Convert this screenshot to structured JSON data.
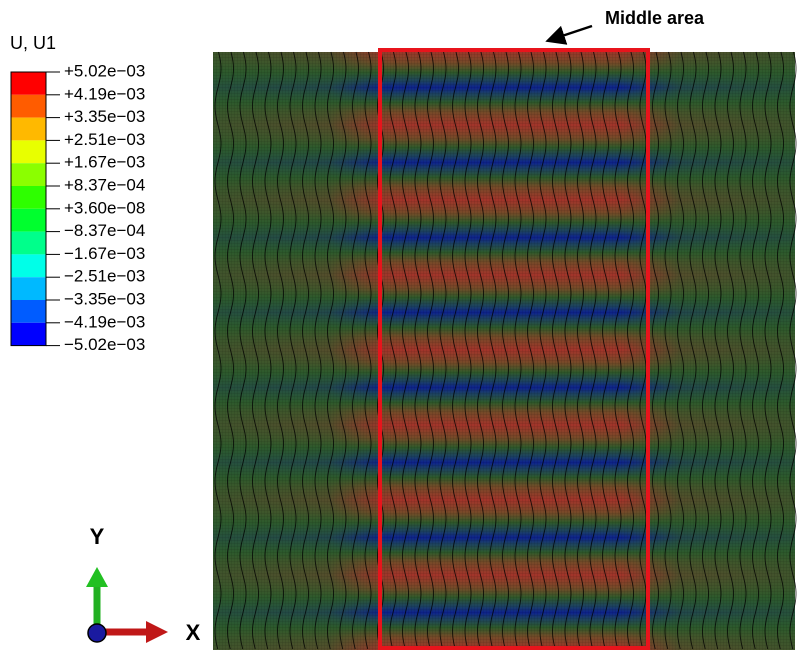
{
  "legend": {
    "title": "U, U1",
    "labels": [
      "+5.02e−03",
      "+4.19e−03",
      "+3.35e−03",
      "+2.51e−03",
      "+1.67e−03",
      "+8.37e−04",
      "+3.60e−08",
      "−8.37e−04",
      "−1.67e−03",
      "−2.51e−03",
      "−3.35e−03",
      "−4.19e−03",
      "−5.02e−03"
    ]
  },
  "annotation": "Middle area",
  "triad": {
    "y": "Y",
    "x": "X"
  }
}
